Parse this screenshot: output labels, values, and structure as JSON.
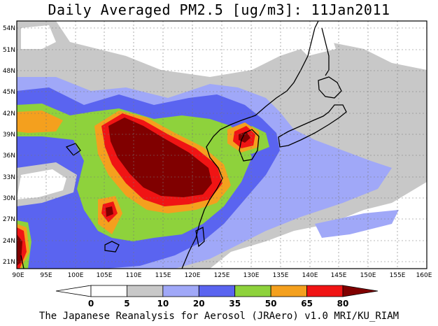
{
  "title": "Daily Averaged PM2.5 [ug/m3]: 11Jan2011",
  "footer": "The Japanese Reanalysis for Aerosol (JRAero) v1.0 MRI/KU_RIAM",
  "map": {
    "lon_range": [
      90,
      160
    ],
    "lat_range": [
      20,
      55
    ],
    "lon_ticks": [
      "90E",
      "95E",
      "100E",
      "105E",
      "110E",
      "115E",
      "120E",
      "125E",
      "130E",
      "135E",
      "140E",
      "145E",
      "150E",
      "155E",
      "160E"
    ],
    "lat_ticks": [
      "21N",
      "24N",
      "27N",
      "30N",
      "33N",
      "36N",
      "39N",
      "42N",
      "45N",
      "48N",
      "51N",
      "54N"
    ],
    "grid": true
  },
  "colorbar": {
    "labels": [
      "0",
      "5",
      "10",
      "20",
      "35",
      "50",
      "65",
      "80"
    ],
    "colors": [
      "#ffffff",
      "#c8c8c8",
      "#a0a8f8",
      "#5a64f0",
      "#8ed23c",
      "#f4a01e",
      "#f01414",
      "#800000"
    ]
  }
}
